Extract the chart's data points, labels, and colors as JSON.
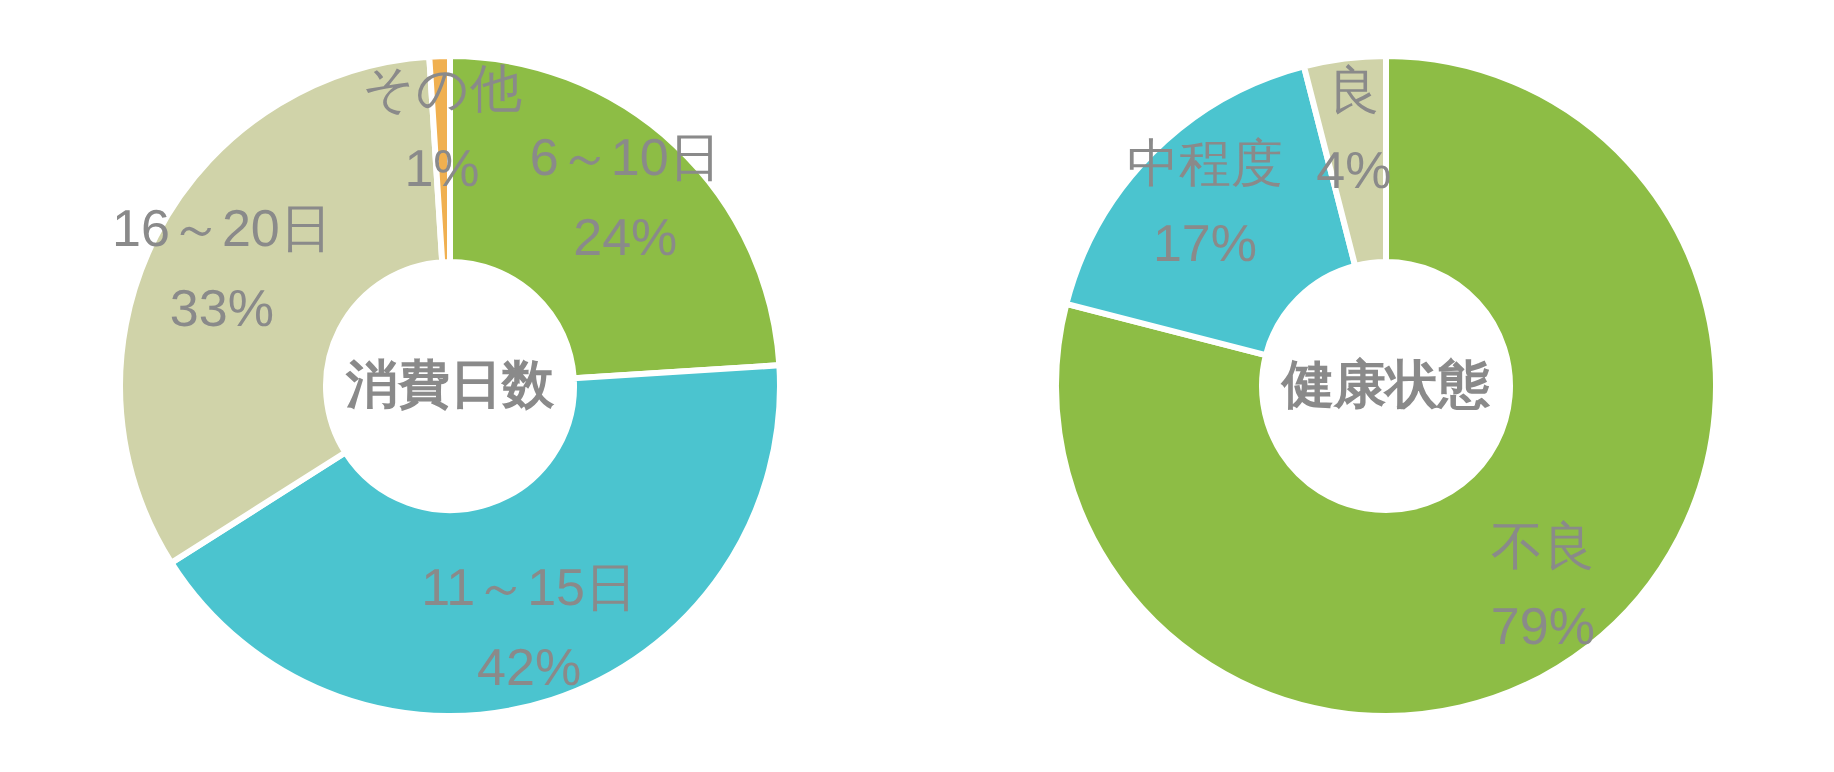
{
  "chart_data": [
    {
      "type": "donut",
      "title": "消費日数",
      "categories": [
        "6～10日",
        "11～15日",
        "16～20日",
        "その他"
      ],
      "values": [
        24,
        42,
        33,
        1
      ],
      "colors": [
        "#8dbd45",
        "#4bc4cf",
        "#d0d3a9",
        "#f0b050"
      ],
      "value_labels": [
        "24%",
        "42%",
        "33%",
        "1%"
      ]
    },
    {
      "type": "donut",
      "title": "健康状態",
      "categories": [
        "不良",
        "中程度",
        "良"
      ],
      "values": [
        79,
        17,
        4
      ],
      "colors": [
        "#8dbd45",
        "#4bc4cf",
        "#d0d3a9"
      ],
      "value_labels": [
        "79%",
        "17%",
        "4%"
      ]
    }
  ]
}
